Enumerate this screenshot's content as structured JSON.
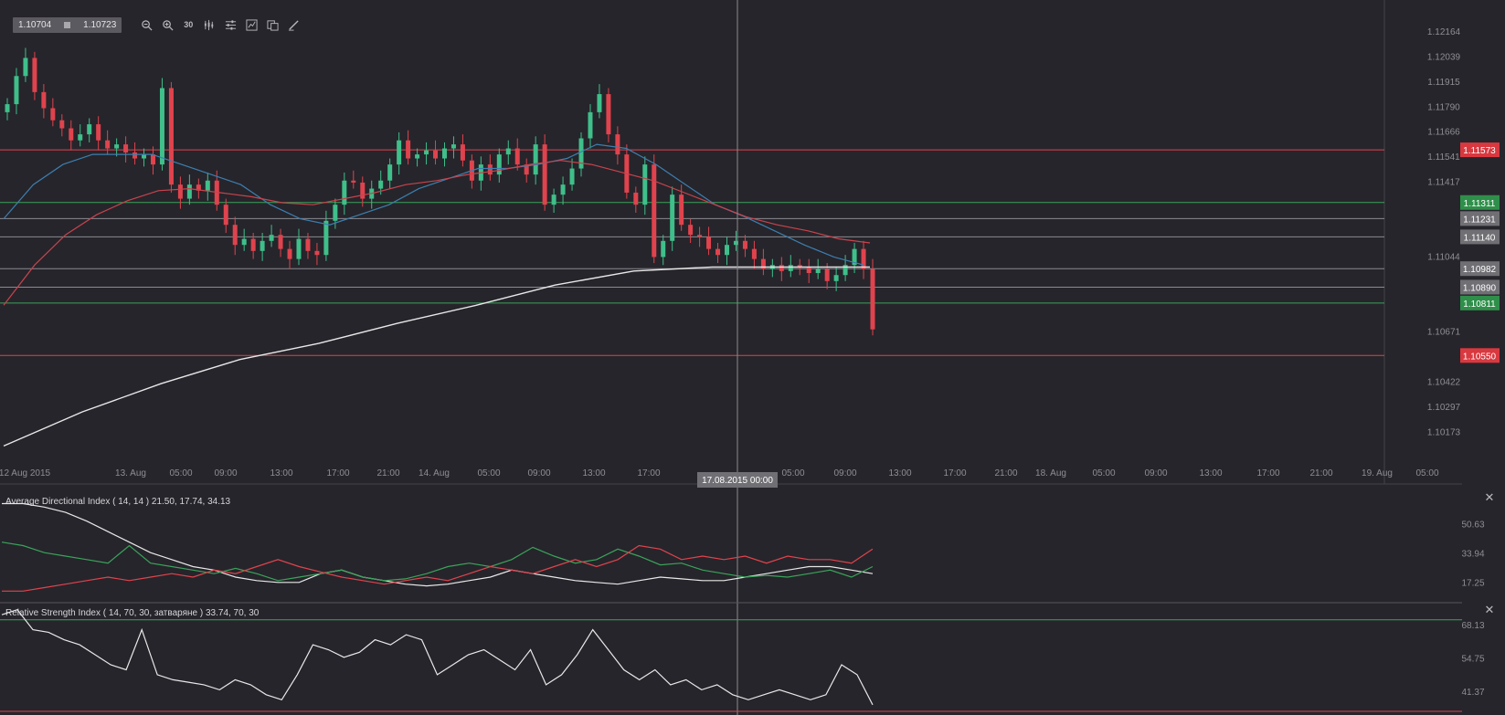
{
  "toolbar": {
    "bid": "1.10704",
    "ask": "1.10723",
    "timeframe": "30",
    "tools": [
      {
        "name": "zoom-out-icon",
        "glyph": "zoom-out"
      },
      {
        "name": "zoom-in-icon",
        "glyph": "zoom-in"
      },
      {
        "name": "timeframe-button",
        "glyph": "tf"
      },
      {
        "name": "indicators-icon",
        "glyph": "indicators"
      },
      {
        "name": "settings-sliders-icon",
        "glyph": "sliders"
      },
      {
        "name": "chart-type-icon",
        "glyph": "charttype"
      },
      {
        "name": "templates-icon",
        "glyph": "templates"
      },
      {
        "name": "draw-pencil-icon",
        "glyph": "pencil"
      }
    ]
  },
  "colors": {
    "background": "#26252b",
    "grid": "#303036",
    "axis_text": "#8e8e93",
    "up": "#3fbf8a",
    "down": "#e0434d",
    "sma_blue": "#3c7fb0",
    "sma_red": "#c8434d",
    "sma_white": "#e8e8e8",
    "line_red": "#e0434d",
    "line_green": "#3aa35a",
    "line_grey": "#8a8a8f"
  },
  "chart_data": [
    {
      "type": "candlestick",
      "pair_timeframe_minutes": 30,
      "y_ticks": [
        "1.12164",
        "1.12039",
        "1.11915",
        "1.11790",
        "1.11666",
        "1.11541",
        "1.11417",
        "1.11044",
        "1.10671",
        "1.10422",
        "1.10297",
        "1.10173"
      ],
      "ylim": [
        1.1007,
        1.1225
      ],
      "x_ticks": [
        "12 Aug 2015",
        "13. Aug",
        "05:00",
        "09:00",
        "13:00",
        "17:00",
        "21:00",
        "14. Aug",
        "05:00",
        "09:00",
        "13:00",
        "17:00",
        "05:00",
        "09:00",
        "13:00",
        "17:00",
        "21:00",
        "18. Aug",
        "05:00",
        "09:00",
        "13:00",
        "17:00",
        "21:00",
        "19. Aug",
        "05:00"
      ],
      "crosshair_time_label": "17.08.2015 00:00",
      "levels": [
        {
          "value": 1.11573,
          "label": "1.11573",
          "color": "red"
        },
        {
          "value": 1.11311,
          "label": "1.11311",
          "color": "green"
        },
        {
          "value": 1.11231,
          "label": "1.11231",
          "color": "grey"
        },
        {
          "value": 1.1114,
          "label": "1.11140",
          "color": "grey"
        },
        {
          "value": 1.10982,
          "label": "1.10982",
          "color": "grey"
        },
        {
          "value": 1.1089,
          "label": "1.10890",
          "color": "grey"
        },
        {
          "value": 1.10811,
          "label": "1.10811",
          "color": "green"
        },
        {
          "value": 1.1055,
          "label": "1.10550",
          "color": "red"
        }
      ],
      "close_series": [
        1.118,
        1.1194,
        1.1203,
        1.1186,
        1.1178,
        1.1172,
        1.1168,
        1.1162,
        1.1165,
        1.117,
        1.1162,
        1.1158,
        1.116,
        1.1156,
        1.1153,
        1.1155,
        1.115,
        1.1188,
        1.114,
        1.1133,
        1.114,
        1.1137,
        1.1142,
        1.113,
        1.112,
        1.111,
        1.1113,
        1.1107,
        1.1112,
        1.1115,
        1.1108,
        1.1103,
        1.1113,
        1.1107,
        1.1105,
        1.1122,
        1.113,
        1.1142,
        1.1141,
        1.1133,
        1.1138,
        1.1142,
        1.115,
        1.1162,
        1.1153,
        1.1155,
        1.1157,
        1.1153,
        1.1158,
        1.116,
        1.1152,
        1.1142,
        1.115,
        1.1145,
        1.1155,
        1.1158,
        1.115,
        1.1145,
        1.116,
        1.113,
        1.1135,
        1.114,
        1.1148,
        1.1163,
        1.1176,
        1.1185,
        1.1165,
        1.1155,
        1.1136,
        1.113,
        1.115,
        1.1104,
        1.1112,
        1.1135,
        1.112,
        1.1115,
        1.1114,
        1.1108,
        1.1105,
        1.111,
        1.1112,
        1.1108,
        1.1103,
        1.1098,
        1.11,
        1.1097,
        1.11,
        1.1099,
        1.1096,
        1.1098,
        1.1092,
        1.1095,
        1.11,
        1.1108,
        1.1098,
        1.1068
      ],
      "sma_20_blue": [
        1.1123,
        1.114,
        1.115,
        1.1155,
        1.1155,
        1.1155,
        1.115,
        1.1145,
        1.114,
        1.113,
        1.1123,
        1.112,
        1.1125,
        1.113,
        1.1138,
        1.1143,
        1.1148,
        1.1148,
        1.115,
        1.1153,
        1.116,
        1.1158,
        1.115,
        1.114,
        1.113,
        1.1124,
        1.1117,
        1.111,
        1.1104,
        1.11
      ],
      "sma_50_red": [
        1.108,
        1.11,
        1.1115,
        1.1125,
        1.1132,
        1.1137,
        1.1138,
        1.1136,
        1.1134,
        1.1131,
        1.113,
        1.1133,
        1.1136,
        1.114,
        1.1142,
        1.1145,
        1.1147,
        1.115,
        1.1152,
        1.115,
        1.1146,
        1.1142,
        1.1136,
        1.113,
        1.1124,
        1.112,
        1.1117,
        1.1113,
        1.1111
      ],
      "sma_200_white": [
        1.101,
        1.1027,
        1.1041,
        1.1053,
        1.1061,
        1.1071,
        1.108,
        1.109,
        1.1097,
        1.1099,
        1.1099,
        1.1099
      ]
    },
    {
      "type": "line",
      "title": "Average Directional Index ( 14, 14 ) 21.50, 17.74, 34.13",
      "y_ticks": [
        "50.63",
        "33.94",
        "17.25"
      ],
      "ylim": [
        8,
        68
      ],
      "series": [
        {
          "name": "ADX",
          "color": "white",
          "values": [
            62,
            62,
            60,
            57,
            52,
            46,
            40,
            34,
            30,
            26,
            24,
            20,
            18,
            17,
            17,
            22,
            24,
            20,
            18,
            16,
            15,
            16,
            18,
            20,
            24,
            22,
            20,
            18,
            17,
            16,
            18,
            20,
            19,
            18,
            18,
            20,
            22,
            24,
            26,
            26,
            24,
            22
          ]
        },
        {
          "name": "+DI",
          "color": "green",
          "values": [
            40,
            38,
            34,
            32,
            30,
            28,
            38,
            28,
            26,
            24,
            22,
            25,
            22,
            18,
            20,
            22,
            24,
            20,
            18,
            19,
            22,
            26,
            28,
            26,
            30,
            37,
            32,
            28,
            30,
            36,
            32,
            27,
            28,
            24,
            22,
            20,
            21,
            20,
            22,
            24,
            20,
            26
          ]
        },
        {
          "name": "-DI",
          "color": "red",
          "values": [
            12,
            12,
            14,
            16,
            18,
            20,
            18,
            20,
            22,
            20,
            24,
            22,
            26,
            30,
            26,
            23,
            20,
            18,
            16,
            18,
            20,
            18,
            22,
            26,
            24,
            22,
            26,
            30,
            26,
            30,
            38,
            36,
            30,
            32,
            30,
            32,
            28,
            32,
            30,
            30,
            28,
            36
          ]
        }
      ]
    },
    {
      "type": "line",
      "title": "Relative Strength Index ( 14, 70, 30, затваряне ) 33.74, 70, 30",
      "y_ticks": [
        "68.13",
        "54.75",
        "41.37"
      ],
      "ylim": [
        33,
        75
      ],
      "levels": [
        70,
        30
      ],
      "series": [
        {
          "name": "RSI",
          "color": "white",
          "values": [
            72,
            74,
            66,
            65,
            62,
            60,
            56,
            52,
            50,
            66,
            48,
            46,
            45,
            44,
            42,
            46,
            44,
            40,
            38,
            48,
            60,
            58,
            55,
            57,
            62,
            60,
            64,
            62,
            48,
            52,
            56,
            58,
            54,
            50,
            58,
            44,
            48,
            56,
            66,
            58,
            50,
            46,
            50,
            44,
            46,
            42,
            44,
            40,
            38,
            40,
            42,
            40,
            38,
            40,
            52,
            48,
            36
          ]
        }
      ]
    }
  ]
}
